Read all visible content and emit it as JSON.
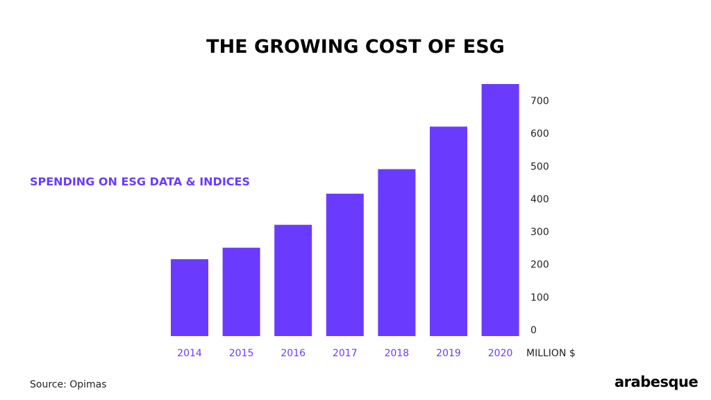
{
  "page": {
    "title": "THE GROWING COST OF ESG",
    "subtitle": "SPENDING ON ESG DATA & INDICES",
    "source": "Source: Opimas",
    "brand": "arabesque"
  },
  "colors": {
    "bar": "#6A3BFF",
    "accent_text": "#6A3BFF",
    "axis_text": "#222222"
  },
  "chart_data": {
    "type": "bar",
    "title": "THE GROWING COST OF ESG",
    "subtitle": "SPENDING ON ESG DATA & INDICES",
    "categories": [
      "2014",
      "2015",
      "2016",
      "2017",
      "2018",
      "2019",
      "2020"
    ],
    "values": [
      235,
      270,
      340,
      435,
      510,
      640,
      770
    ],
    "ylabel": "MILLION $",
    "ylim": [
      0,
      770
    ],
    "yticks": [
      "0",
      "100",
      "200",
      "300",
      "400",
      "500",
      "600",
      "700"
    ],
    "y_axis_position": "right",
    "grid": false,
    "legend": "none"
  }
}
